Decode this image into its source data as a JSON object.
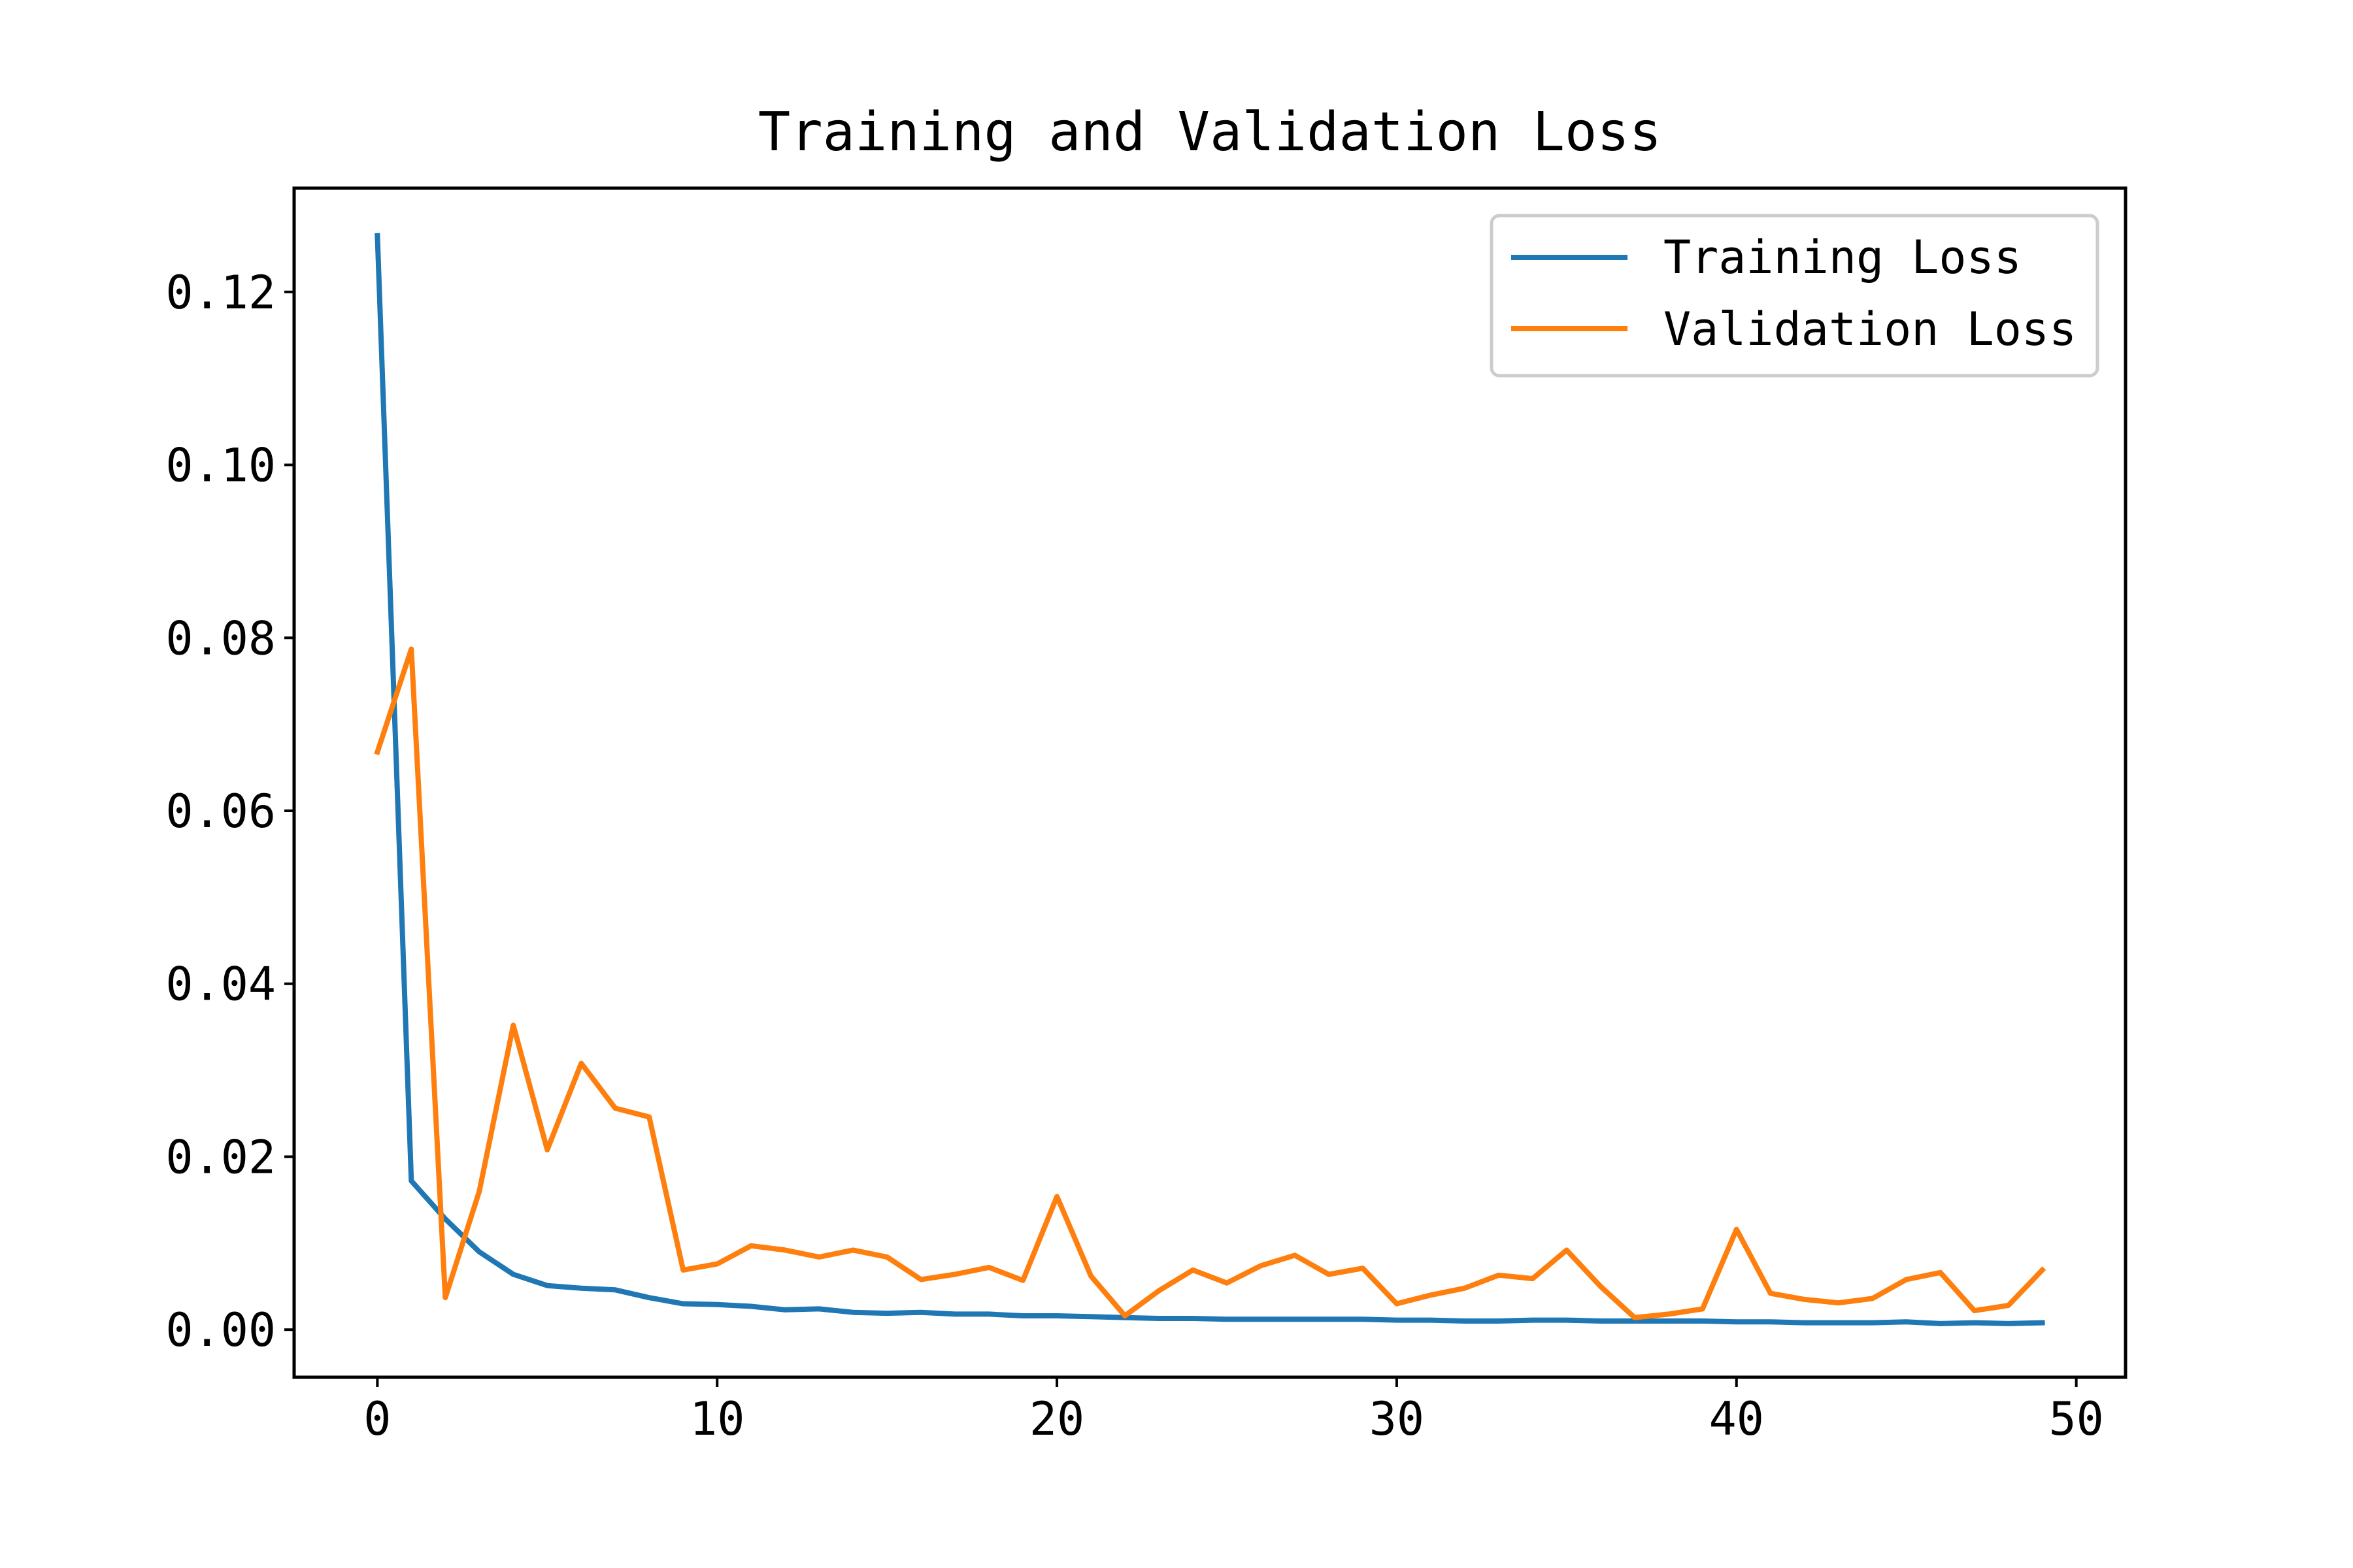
{
  "chart_data": {
    "type": "line",
    "title": "Training and Validation Loss",
    "xlabel": "",
    "ylabel": "",
    "xlim": [
      -2.45,
      51.45
    ],
    "ylim": [
      -0.0055,
      0.132
    ],
    "xticks": [
      0,
      10,
      20,
      30,
      40,
      50
    ],
    "xtick_labels": [
      "0",
      "10",
      "20",
      "30",
      "40",
      "50"
    ],
    "yticks": [
      0.0,
      0.02,
      0.04,
      0.06,
      0.08,
      0.1,
      0.12
    ],
    "ytick_labels": [
      "0.00",
      "0.02",
      "0.04",
      "0.06",
      "0.08",
      "0.10",
      "0.12"
    ],
    "grid": false,
    "legend_position": "top-right",
    "x": [
      0,
      1,
      2,
      3,
      4,
      5,
      6,
      7,
      8,
      9,
      10,
      11,
      12,
      13,
      14,
      15,
      16,
      17,
      18,
      19,
      20,
      21,
      22,
      23,
      24,
      25,
      26,
      27,
      28,
      29,
      30,
      31,
      32,
      33,
      34,
      35,
      36,
      37,
      38,
      39,
      40,
      41,
      42,
      43,
      44,
      45,
      46,
      47,
      48,
      49
    ],
    "series": [
      {
        "name": "Training Loss",
        "color": "#1f77b4",
        "values": [
          0.1265,
          0.0172,
          0.0128,
          0.009,
          0.0064,
          0.0051,
          0.0048,
          0.0046,
          0.0037,
          0.003,
          0.0029,
          0.0027,
          0.0023,
          0.0024,
          0.002,
          0.0019,
          0.002,
          0.0018,
          0.0018,
          0.0016,
          0.0016,
          0.0015,
          0.0014,
          0.0013,
          0.0013,
          0.0012,
          0.0012,
          0.0012,
          0.0012,
          0.0012,
          0.0011,
          0.0011,
          0.001,
          0.001,
          0.0011,
          0.0011,
          0.001,
          0.001,
          0.001,
          0.001,
          0.0009,
          0.0009,
          0.0008,
          0.0008,
          0.0008,
          0.0009,
          0.0007,
          0.0008,
          0.0007,
          0.0008
        ]
      },
      {
        "name": "Validation Loss",
        "color": "#ff7f0e",
        "values": [
          0.0668,
          0.0787,
          0.0037,
          0.016,
          0.0352,
          0.0208,
          0.0308,
          0.0256,
          0.0246,
          0.0069,
          0.0076,
          0.0097,
          0.0092,
          0.0084,
          0.0092,
          0.0084,
          0.0058,
          0.0064,
          0.0072,
          0.0057,
          0.0154,
          0.0062,
          0.0016,
          0.0045,
          0.0069,
          0.0054,
          0.0074,
          0.0086,
          0.0064,
          0.0071,
          0.003,
          0.004,
          0.0048,
          0.0063,
          0.0059,
          0.0092,
          0.005,
          0.0014,
          0.0018,
          0.0024,
          0.0116,
          0.0042,
          0.0035,
          0.0031,
          0.0036,
          0.0058,
          0.0066,
          0.0022,
          0.0028,
          0.0069
        ]
      }
    ]
  }
}
